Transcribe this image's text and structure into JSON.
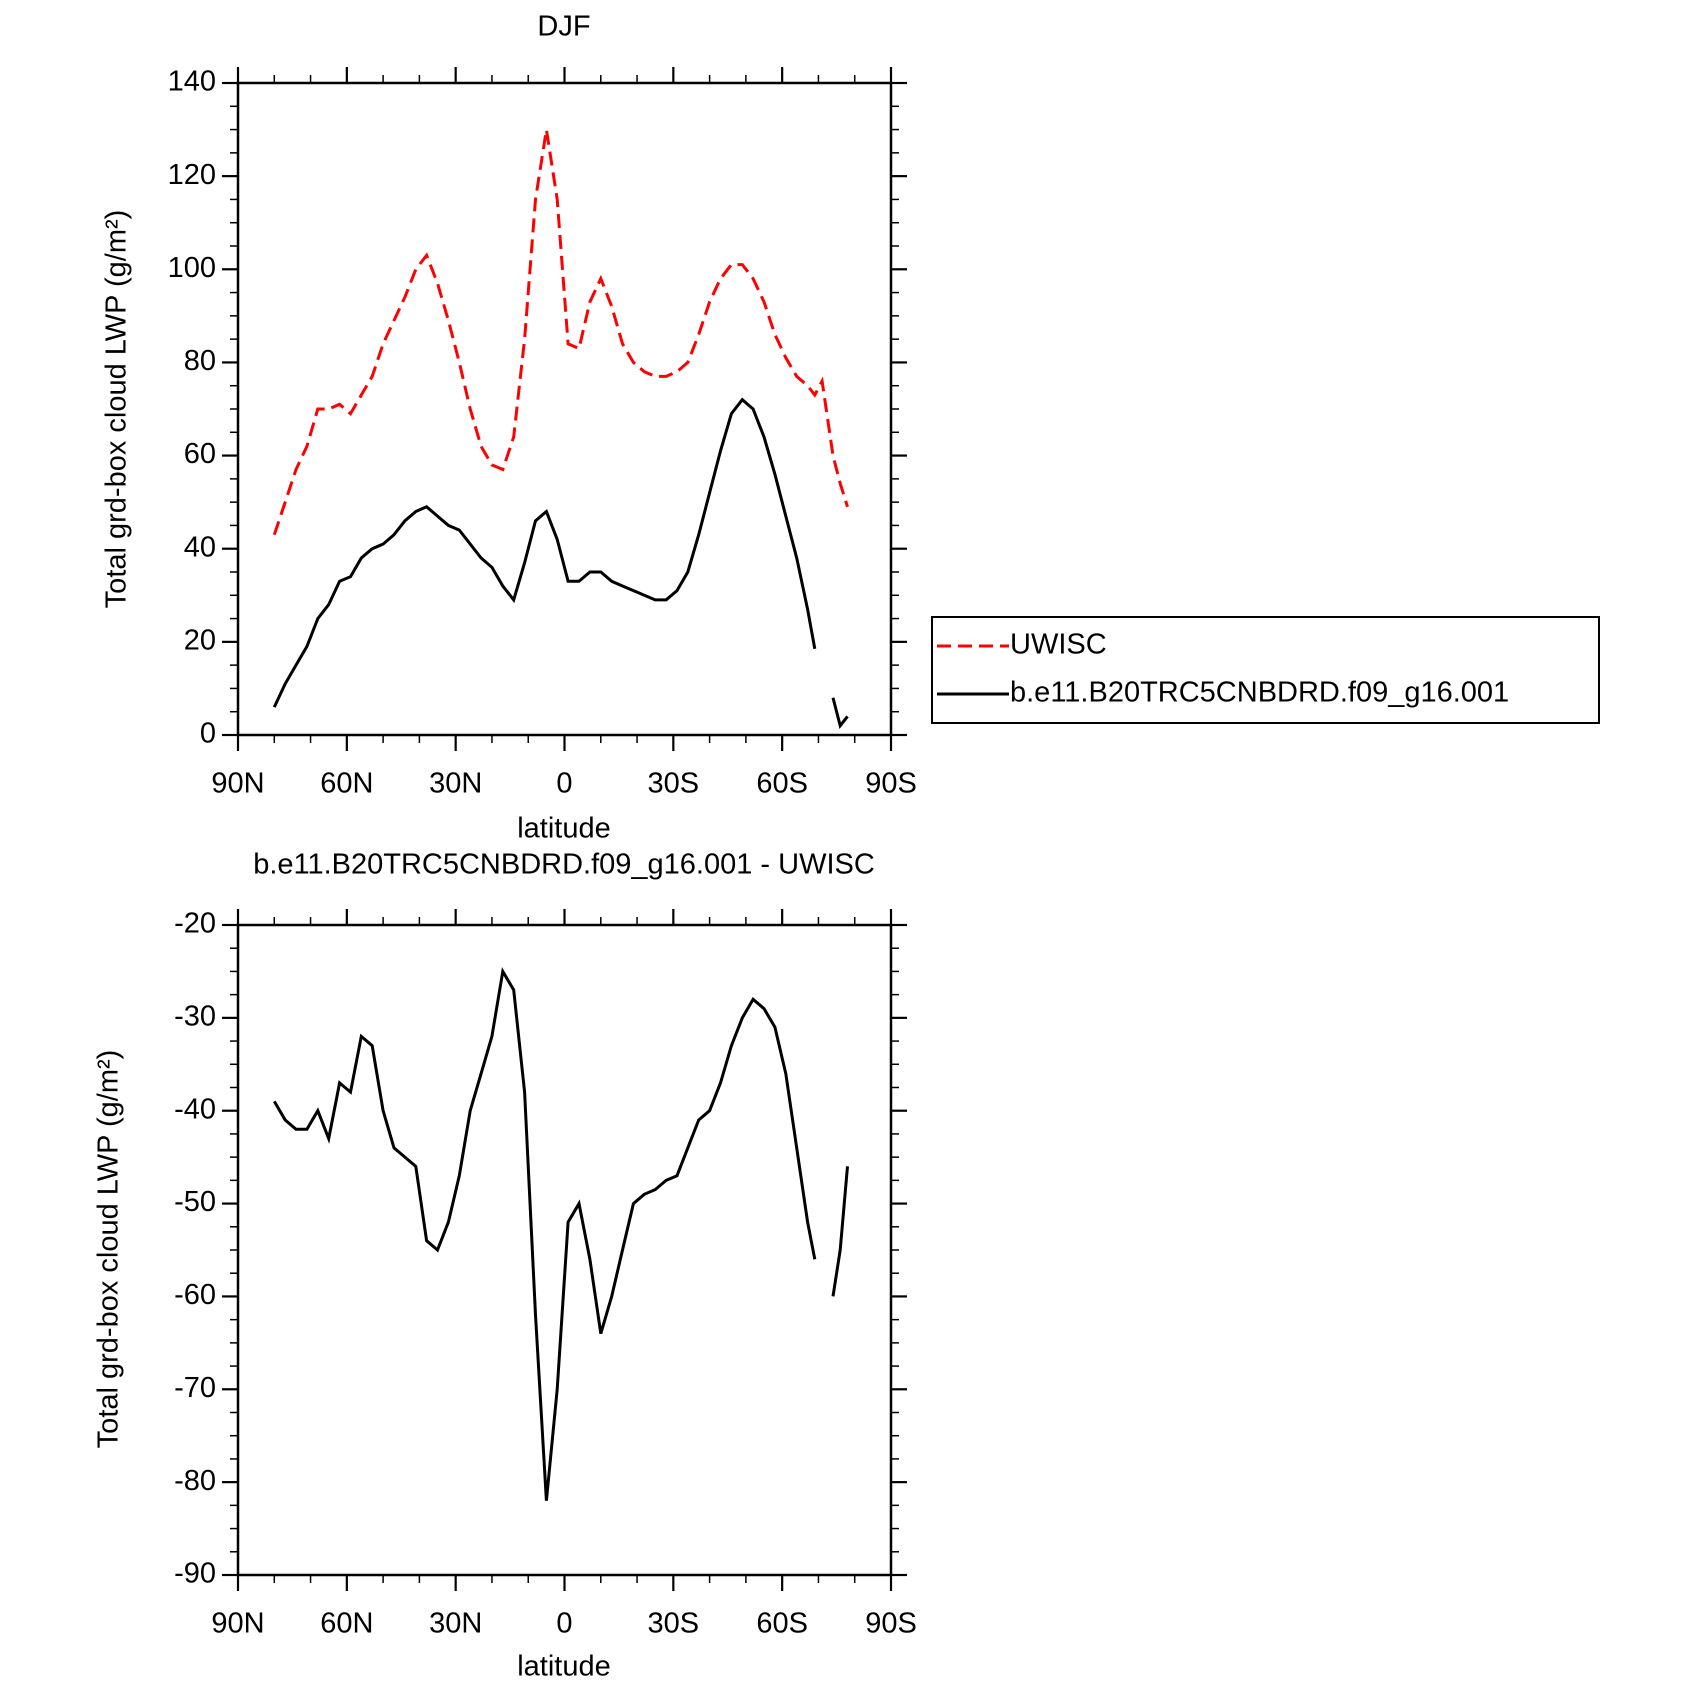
{
  "chart_data": [
    {
      "type": "line",
      "title": "DJF",
      "xlabel": "latitude",
      "ylabel": "Total grd-box cloud LWP (g/m²)",
      "x": [
        80,
        77,
        74,
        71,
        68,
        65,
        62,
        59,
        56,
        53,
        50,
        47,
        44,
        41,
        38,
        35,
        32,
        29,
        26,
        23,
        20,
        17,
        14,
        11,
        8,
        5,
        2,
        -1,
        -4,
        -7,
        -10,
        -13,
        -16,
        -19,
        -22,
        -25,
        -28,
        -31,
        -34,
        -37,
        -40,
        -43,
        -46,
        -49,
        -52,
        -55,
        -58,
        -61,
        -64,
        -67,
        -69,
        -71,
        -74,
        -76,
        -78
      ],
      "series": [
        {
          "name": "UWISC",
          "color": "#ff0000",
          "linestyle": "dashed",
          "values": [
            43,
            50,
            57,
            62,
            70,
            70,
            71,
            69,
            73,
            77,
            84,
            89,
            94,
            100,
            103,
            97,
            89,
            80,
            70,
            62,
            58,
            57,
            64,
            85,
            115,
            130,
            115,
            84,
            83,
            93,
            98,
            92,
            84,
            80,
            78,
            77,
            77,
            78,
            80,
            86,
            93,
            98,
            101,
            101,
            98,
            93,
            86,
            81,
            77,
            75,
            73,
            76,
            60,
            54,
            49
          ]
        },
        {
          "name": "b.e11.B20TRC5CNBDRD.f09_g16.001",
          "color": "#000000",
          "linestyle": "solid",
          "values": [
            6,
            11,
            15,
            19,
            25,
            28,
            33,
            34,
            38,
            40,
            41,
            43,
            46,
            48,
            49,
            47,
            45,
            44,
            41,
            38,
            36,
            32,
            29,
            37,
            46,
            48,
            42,
            33,
            33,
            35,
            35,
            33,
            32,
            31,
            30,
            29,
            29,
            31,
            35,
            43,
            52,
            61,
            69,
            72,
            70,
            64,
            56,
            47,
            38,
            27,
            18.5,
            null,
            8,
            2,
            4
          ]
        }
      ],
      "xlim": [
        90,
        -90
      ],
      "xticks": [
        {
          "value": 90,
          "label": "90N"
        },
        {
          "value": 60,
          "label": "60N"
        },
        {
          "value": 30,
          "label": "30N"
        },
        0,
        {
          "value": -30,
          "label": "30S"
        },
        {
          "value": -60,
          "label": "60S"
        },
        {
          "value": -90,
          "label": "90S"
        }
      ],
      "ylim": [
        0,
        140
      ],
      "yticks": [
        0,
        20,
        40,
        60,
        80,
        100,
        120,
        140
      ],
      "legend": "right"
    },
    {
      "type": "line",
      "title": "b.e11.B20TRC5CNBDRD.f09_g16.001 - UWISC",
      "xlabel": "latitude",
      "ylabel": "Total grd-box cloud LWP (g/m²)",
      "x": [
        80,
        77,
        74,
        71,
        68,
        65,
        62,
        59,
        56,
        53,
        50,
        47,
        44,
        41,
        38,
        35,
        32,
        29,
        26,
        23,
        20,
        17,
        14,
        11,
        8,
        5,
        2,
        -1,
        -4,
        -7,
        -10,
        -13,
        -16,
        -19,
        -22,
        -25,
        -28,
        -31,
        -34,
        -37,
        -40,
        -43,
        -46,
        -49,
        -52,
        -55,
        -58,
        -61,
        -64,
        -67,
        -69,
        -71,
        -74,
        -76,
        -78
      ],
      "color": "#000000",
      "values": [
        -39,
        -41,
        -42,
        -42,
        -40,
        -43,
        -37,
        -38,
        -32,
        -33,
        -40,
        -44,
        -45,
        -46,
        -54,
        -55,
        -52,
        -47,
        -40,
        -36,
        -32,
        -25,
        -27,
        -38,
        -62,
        -82,
        -70,
        -52,
        -50,
        -56,
        -64,
        -60,
        -55,
        -50,
        -49,
        -48.5,
        -47.5,
        -47,
        -44,
        -41,
        -40,
        -37,
        -33,
        -30,
        -28,
        -29,
        -31,
        -36,
        -44,
        -52,
        -56,
        null,
        -60,
        -55,
        -46
      ],
      "xlim": [
        90,
        -90
      ],
      "xticks": [
        {
          "value": 90,
          "label": "90N"
        },
        {
          "value": 60,
          "label": "60N"
        },
        {
          "value": 30,
          "label": "30N"
        },
        0,
        {
          "value": -30,
          "label": "30S"
        },
        {
          "value": -60,
          "label": "60S"
        },
        {
          "value": -90,
          "label": "90S"
        }
      ],
      "ylim": [
        -90,
        -20
      ],
      "yticks": [
        -90,
        -80,
        -70,
        -60,
        -50,
        -40,
        -30,
        -20
      ]
    }
  ]
}
